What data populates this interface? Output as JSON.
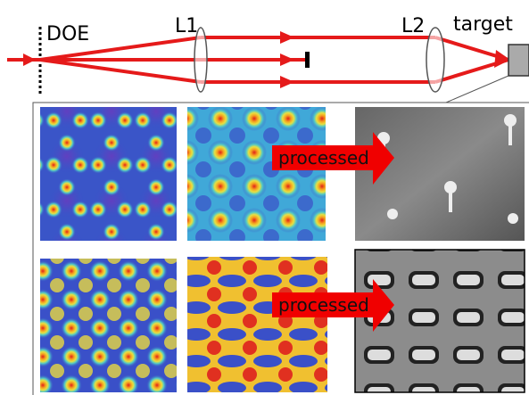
{
  "setup": {
    "doe": "DOE",
    "lens1": "L1",
    "lens2": "L2",
    "target": "target"
  },
  "results": [
    {
      "label": "processed"
    },
    {
      "label": "processed"
    }
  ]
}
